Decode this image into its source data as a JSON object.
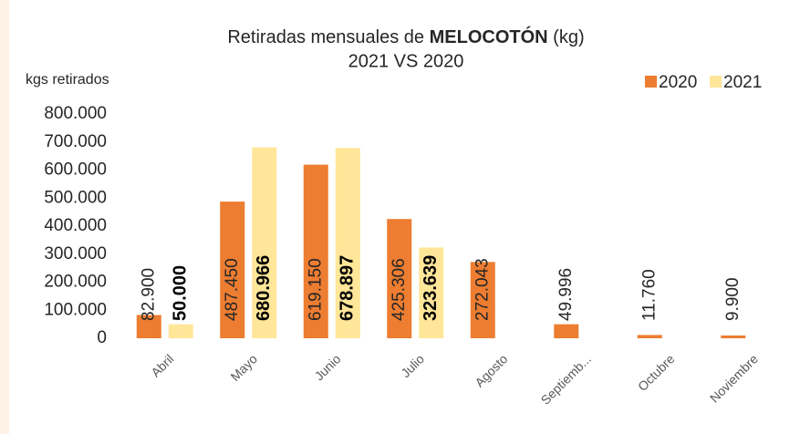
{
  "chart_data": {
    "type": "bar",
    "title": [
      "Retiradas mensuales de",
      "MELOCOTÓN",
      "(kg)"
    ],
    "subtitle": "2021 VS 2020",
    "y_label": "kgs retirados",
    "categories": [
      "Abril",
      "Mayo",
      "Junio",
      "Julio",
      "Agosto",
      "Septiemb...",
      "Octubre",
      "Noviembre"
    ],
    "series": [
      {
        "name": "2020",
        "color": "#ed7d31",
        "values": [
          82900,
          487450,
          619150,
          425306,
          272043,
          49996,
          11760,
          9900
        ],
        "value_labels": [
          "82.900",
          "487.450",
          "619.150",
          "425.306",
          "272.043",
          "49.996",
          "11.760",
          "9.900"
        ]
      },
      {
        "name": "2021",
        "color": "#ffe699",
        "values": [
          50000,
          680966,
          678897,
          323639,
          null,
          null,
          null,
          null
        ],
        "value_labels": [
          "50.000",
          "680.966",
          "678.897",
          "323.639",
          null,
          null,
          null,
          null
        ]
      }
    ],
    "ylim": [
      0,
      800000
    ],
    "yticks": [
      0,
      {
        "value": 100000,
        "label": "100.000"
      },
      {
        "value": 200000,
        "label": "200.000"
      },
      {
        "value": 300000,
        "label": "300.000"
      },
      {
        "value": 400000,
        "label": "400.000"
      },
      {
        "value": 500000,
        "label": "500.000"
      },
      {
        "value": 600000,
        "label": "600.000"
      },
      {
        "value": 700000,
        "label": "700.000"
      },
      {
        "value": 800000,
        "label": "800.000"
      }
    ],
    "grid": false,
    "legend": "top-right"
  }
}
